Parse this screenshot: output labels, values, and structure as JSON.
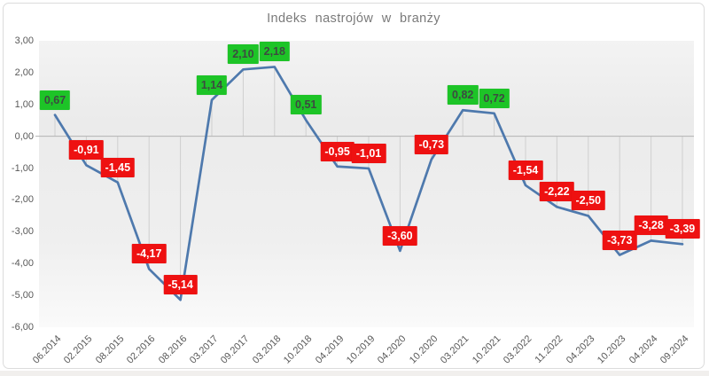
{
  "chart_data": {
    "type": "line",
    "title": "Indeks nastrojów w branży",
    "categories": [
      "06.2014",
      "02.2015",
      "08.2015",
      "02.2016",
      "08.2016",
      "03.2017",
      "09.2017",
      "03.2018",
      "10.2018",
      "04.2019",
      "10.2019",
      "04.2020",
      "10.2020",
      "03.2021",
      "10.2021",
      "03.2022",
      "11.2022",
      "04.2023",
      "10.2023",
      "04.2024",
      "09.2024"
    ],
    "values": [
      0.67,
      -0.91,
      -1.45,
      -4.17,
      -5.14,
      1.14,
      2.1,
      2.18,
      0.51,
      -0.95,
      -1.01,
      -3.6,
      -0.73,
      0.82,
      0.72,
      -1.54,
      -2.22,
      -2.5,
      -3.73,
      -3.28,
      -3.39
    ],
    "point_labels": [
      "0,67",
      "-0,91",
      "-1,45",
      "-4,17",
      "-5,14",
      "1,14",
      "2,10",
      "2,18",
      "0,51",
      "-0,95",
      "-1,01",
      "-3,60",
      "-0,73",
      "0,82",
      "0,72",
      "-1,54",
      "-2,22",
      "-2,50",
      "-3,73",
      "-3,28",
      "-3,39"
    ],
    "ytick_values": [
      3,
      2,
      1,
      0,
      -1,
      -2,
      -3,
      -4,
      -5,
      -6
    ],
    "ytick_labels": [
      "3,00",
      "2,00",
      "1,00",
      "0,00",
      "-1,00",
      "-2,00",
      "-3,00",
      "-4,00",
      "-5,00",
      "-6,00"
    ],
    "ylim": [
      -6,
      3
    ],
    "xlabel": "",
    "ylabel": "",
    "legend": "none",
    "grid": "drop-lines-to-zero-axis",
    "colors": {
      "line": "#4e79ad",
      "positive_label_bg": "#1dc427",
      "positive_label_text": "#3d4a41",
      "negative_label_bg": "#ee1111",
      "negative_label_text": "#ffffff",
      "axis_text": "#595959",
      "title_text": "#7a7a7a",
      "drop_line": "#cfcfcf",
      "zero_line": "#b3b3b3",
      "frame_border": "#dcdcdc"
    }
  }
}
